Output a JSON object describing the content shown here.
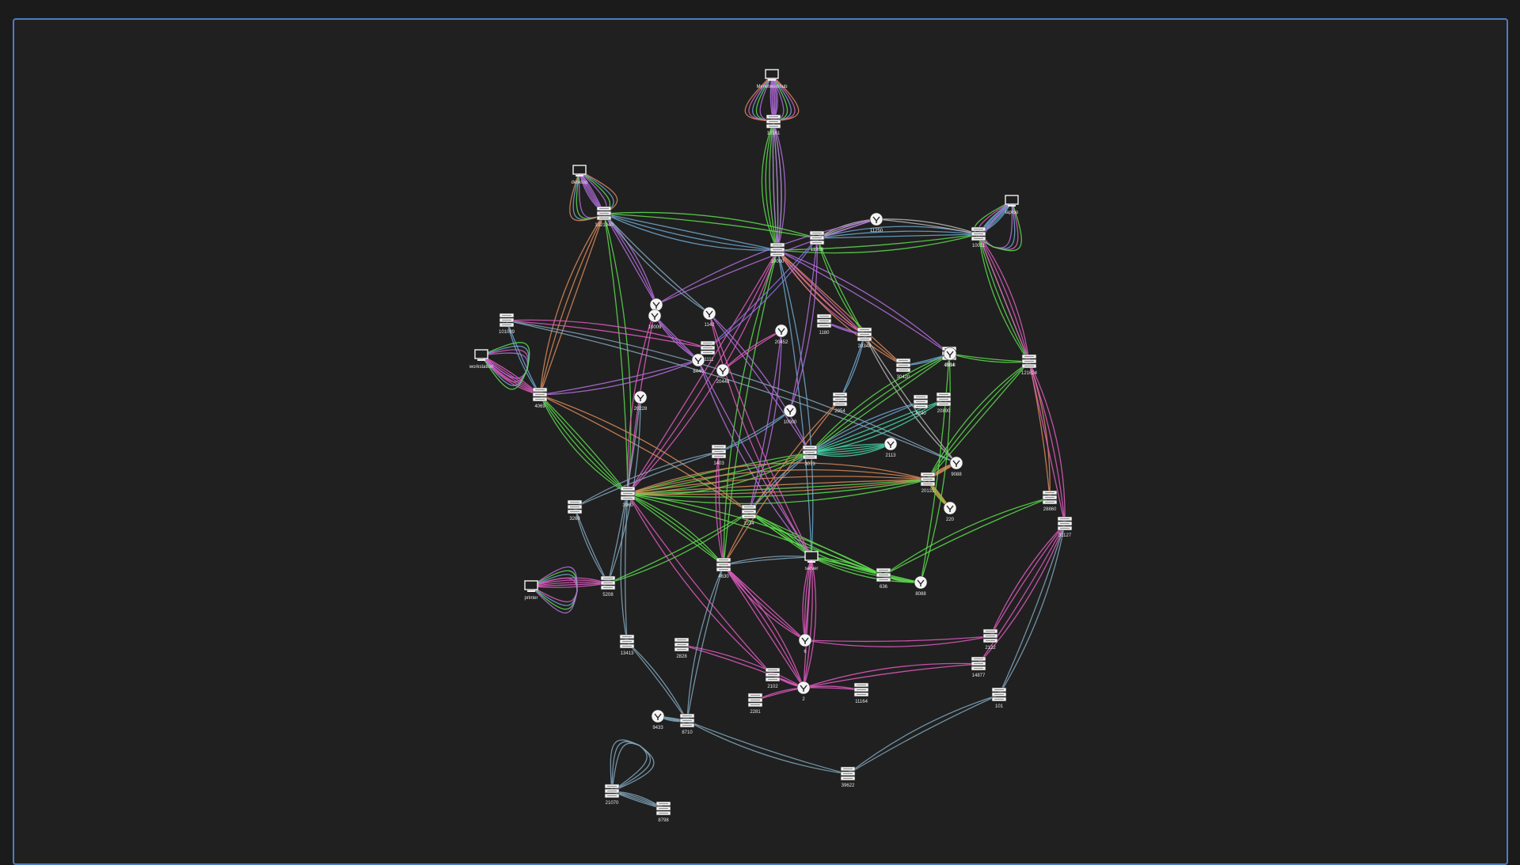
{
  "canvas": {
    "background": "#202020",
    "border_color": "#4d7cc4"
  },
  "palette": {
    "purple": "#b66ee0",
    "green": "#5ddd4d",
    "blue": "#6fa8d0",
    "steel": "#83a7bd",
    "orange": "#d98a5a",
    "pink": "#e25cc1",
    "mint": "#45d6a8",
    "gray": "#b8b8b8",
    "yellow": "#c9b74a",
    "violet": "#8a73e0"
  },
  "nodes": [
    {
      "id": "n1",
      "kind": "monitor",
      "label": "Mynetworkhub"
    },
    {
      "id": "n2",
      "kind": "router",
      "label": "10161"
    },
    {
      "id": "n3",
      "kind": "monitor",
      "label": "desktop"
    },
    {
      "id": "n4",
      "kind": "router",
      "label": "1021040"
    },
    {
      "id": "n5",
      "kind": "monitor",
      "label": "laptop"
    },
    {
      "id": "n6",
      "kind": "router",
      "label": "10011"
    },
    {
      "id": "n7",
      "kind": "router",
      "label": "10000"
    },
    {
      "id": "n8",
      "kind": "router",
      "label": "11926"
    },
    {
      "id": "n9",
      "kind": "cloud",
      "label": "11250"
    },
    {
      "id": "n10",
      "kind": "router",
      "label": "101089"
    },
    {
      "id": "n11",
      "kind": "monitor",
      "label": "workstation"
    },
    {
      "id": "n12",
      "kind": "router",
      "label": "4069"
    },
    {
      "id": "n13",
      "kind": "cloud",
      "label": "1111"
    },
    {
      "id": "n14",
      "kind": "cloud",
      "label": "1142"
    },
    {
      "id": "n15",
      "kind": "cloud",
      "label": "10009"
    },
    {
      "id": "n16",
      "kind": "router",
      "label": "11111"
    },
    {
      "id": "n17",
      "kind": "cloud",
      "label": "20448"
    },
    {
      "id": "n18",
      "kind": "cloud",
      "label": "8440"
    },
    {
      "id": "n19",
      "kind": "cloud",
      "label": "20228"
    },
    {
      "id": "n20",
      "kind": "router",
      "label": "1180"
    },
    {
      "id": "n21",
      "kind": "cloud",
      "label": "20452"
    },
    {
      "id": "n22",
      "kind": "router",
      "label": "20348"
    },
    {
      "id": "n23",
      "kind": "router",
      "label": "30420"
    },
    {
      "id": "n24",
      "kind": "router",
      "label": "4584"
    },
    {
      "id": "n25",
      "kind": "cloud",
      "label": "2018"
    },
    {
      "id": "n26",
      "kind": "router",
      "label": "121624"
    },
    {
      "id": "n27",
      "kind": "router",
      "label": "2954"
    },
    {
      "id": "n28",
      "kind": "router",
      "label": "8240"
    },
    {
      "id": "n29",
      "kind": "router",
      "label": "20890"
    },
    {
      "id": "n30",
      "kind": "cloud",
      "label": "10000"
    },
    {
      "id": "n31",
      "kind": "router",
      "label": "1403"
    },
    {
      "id": "n32",
      "kind": "router",
      "label": "20131"
    },
    {
      "id": "n33",
      "kind": "router",
      "label": "3073"
    },
    {
      "id": "n34",
      "kind": "cloud",
      "label": "2113"
    },
    {
      "id": "n35",
      "kind": "cloud",
      "label": "9088"
    },
    {
      "id": "n36",
      "kind": "router",
      "label": "3960"
    },
    {
      "id": "n37",
      "kind": "router",
      "label": "3268"
    },
    {
      "id": "n38",
      "kind": "router",
      "label": "1234"
    },
    {
      "id": "n39",
      "kind": "cloud",
      "label": "220"
    },
    {
      "id": "n40",
      "kind": "router",
      "label": "28860"
    },
    {
      "id": "n41",
      "kind": "router",
      "label": "31127"
    },
    {
      "id": "n42",
      "kind": "monitor",
      "label": "printer"
    },
    {
      "id": "n43",
      "kind": "router",
      "label": "5208"
    },
    {
      "id": "n44",
      "kind": "router",
      "label": "4630"
    },
    {
      "id": "n45",
      "kind": "monitor",
      "label": "server"
    },
    {
      "id": "n46",
      "kind": "router",
      "label": "636"
    },
    {
      "id": "n47",
      "kind": "cloud",
      "label": "8088"
    },
    {
      "id": "n48",
      "kind": "router",
      "label": "13413"
    },
    {
      "id": "n49",
      "kind": "router",
      "label": "2828"
    },
    {
      "id": "n50",
      "kind": "cloud",
      "label": "6"
    },
    {
      "id": "n51",
      "kind": "router",
      "label": "2122"
    },
    {
      "id": "n52",
      "kind": "router",
      "label": "14877"
    },
    {
      "id": "n53",
      "kind": "router",
      "label": "2102"
    },
    {
      "id": "n54",
      "kind": "router",
      "label": "2281"
    },
    {
      "id": "n55",
      "kind": "cloud",
      "label": "2"
    },
    {
      "id": "n56",
      "kind": "router",
      "label": "11164"
    },
    {
      "id": "n57",
      "kind": "router",
      "label": "101"
    },
    {
      "id": "n58",
      "kind": "cloud",
      "label": "9433"
    },
    {
      "id": "n59",
      "kind": "router",
      "label": "8710"
    },
    {
      "id": "n60",
      "kind": "router",
      "label": "39622"
    },
    {
      "id": "n61",
      "kind": "router",
      "label": "21070"
    },
    {
      "id": "n62",
      "kind": "router",
      "label": "8798"
    }
  ],
  "edges": [
    {
      "s": "n1",
      "t": "n2",
      "c": "purple",
      "k": 6
    },
    {
      "s": "n3",
      "t": "n4",
      "c": "purple",
      "k": 5
    },
    {
      "s": "n5",
      "t": "n6",
      "c": "blue",
      "k": 5
    },
    {
      "s": "n11",
      "t": "n12",
      "c": "pink",
      "k": 5
    },
    {
      "s": "n42",
      "t": "n43",
      "c": "pink",
      "k": 5
    },
    {
      "s": "n58",
      "t": "n59",
      "c": "steel",
      "k": 4
    },
    {
      "s": "n61",
      "t": "n62",
      "c": "steel",
      "k": 4
    },
    {
      "s": "n2",
      "t": "n7",
      "c": "green",
      "k": 6
    },
    {
      "s": "n2",
      "t": "n7",
      "c": "purple",
      "k": 4
    },
    {
      "s": "n4",
      "t": "n7",
      "c": "blue",
      "k": 3
    },
    {
      "s": "n4",
      "t": "n8",
      "c": "green",
      "k": 2
    },
    {
      "s": "n4",
      "t": "n12",
      "c": "orange",
      "k": 3
    },
    {
      "s": "n4",
      "t": "n13",
      "c": "purple",
      "k": 3
    },
    {
      "s": "n4",
      "t": "n14",
      "c": "steel",
      "k": 2
    },
    {
      "s": "n4",
      "t": "n36",
      "c": "green",
      "k": 2
    },
    {
      "s": "n6",
      "t": "n26",
      "c": "green",
      "k": 3
    },
    {
      "s": "n6",
      "t": "n26",
      "c": "pink",
      "k": 3
    },
    {
      "s": "n6",
      "t": "n8",
      "c": "blue",
      "k": 3
    },
    {
      "s": "n6",
      "t": "n7",
      "c": "green",
      "k": 2
    },
    {
      "s": "n9",
      "t": "n8",
      "c": "gray",
      "k": 3
    },
    {
      "s": "n9",
      "t": "n6",
      "c": "gray",
      "k": 2
    },
    {
      "s": "n7",
      "t": "n22",
      "c": "pink",
      "k": 3
    },
    {
      "s": "n7",
      "t": "n24",
      "c": "purple",
      "k": 2
    },
    {
      "s": "n7",
      "t": "n23",
      "c": "orange",
      "k": 3
    },
    {
      "s": "n7",
      "t": "n36",
      "c": "pink",
      "k": 3
    },
    {
      "s": "n7",
      "t": "n44",
      "c": "green",
      "k": 2
    },
    {
      "s": "n7",
      "t": "n45",
      "c": "blue",
      "k": 2
    },
    {
      "s": "n8",
      "t": "n22",
      "c": "green",
      "k": 2
    },
    {
      "s": "n8",
      "t": "n30",
      "c": "purple",
      "k": 2
    },
    {
      "s": "n12",
      "t": "n36",
      "c": "green",
      "k": 4
    },
    {
      "s": "n12",
      "t": "n38",
      "c": "orange",
      "k": 2
    },
    {
      "s": "n12",
      "t": "n18",
      "c": "purple",
      "k": 2
    },
    {
      "s": "n10",
      "t": "n16",
      "c": "pink",
      "k": 2
    },
    {
      "s": "n10",
      "t": "n12",
      "c": "blue",
      "k": 2
    },
    {
      "s": "n10",
      "t": "n35",
      "c": "steel",
      "k": 2
    },
    {
      "s": "n13",
      "t": "n36",
      "c": "pink",
      "k": 2
    },
    {
      "s": "n14",
      "t": "n33",
      "c": "purple",
      "k": 2
    },
    {
      "s": "n15",
      "t": "n18",
      "c": "purple",
      "k": 3
    },
    {
      "s": "n17",
      "t": "n21",
      "c": "pink",
      "k": 2
    },
    {
      "s": "n18",
      "t": "n45",
      "c": "purple",
      "k": 2
    },
    {
      "s": "n19",
      "t": "n43",
      "c": "steel",
      "k": 2
    },
    {
      "s": "n20",
      "t": "n22",
      "c": "purple",
      "k": 2
    },
    {
      "s": "n22",
      "t": "n27",
      "c": "blue",
      "k": 2
    },
    {
      "s": "n22",
      "t": "n35",
      "c": "gray",
      "k": 2
    },
    {
      "s": "n26",
      "t": "n40",
      "c": "orange",
      "k": 2
    },
    {
      "s": "n26",
      "t": "n32",
      "c": "green",
      "k": 3
    },
    {
      "s": "n26",
      "t": "n41",
      "c": "pink",
      "k": 3
    },
    {
      "s": "n25",
      "t": "n33",
      "c": "green",
      "k": 3
    },
    {
      "s": "n29",
      "t": "n33",
      "c": "mint",
      "k": 3
    },
    {
      "s": "n33",
      "t": "n34",
      "c": "mint",
      "k": 5
    },
    {
      "s": "n33",
      "t": "n36",
      "c": "green",
      "k": 4
    },
    {
      "s": "n33",
      "t": "n38",
      "c": "blue",
      "k": 2
    },
    {
      "s": "n36",
      "t": "n32",
      "c": "orange",
      "k": 5
    },
    {
      "s": "n36",
      "t": "n32",
      "c": "green",
      "k": 3
    },
    {
      "s": "n32",
      "t": "n35",
      "c": "orange",
      "k": 4
    },
    {
      "s": "n32",
      "t": "n39",
      "c": "yellow",
      "k": 4
    },
    {
      "s": "n38",
      "t": "n45",
      "c": "green",
      "k": 3
    },
    {
      "s": "n38",
      "t": "n46",
      "c": "green",
      "k": 3
    },
    {
      "s": "n36",
      "t": "n46",
      "c": "green",
      "k": 2
    },
    {
      "s": "n45",
      "t": "n47",
      "c": "green",
      "k": 3
    },
    {
      "s": "n45",
      "t": "n46",
      "c": "green",
      "k": 2
    },
    {
      "s": "n46",
      "t": "n47",
      "c": "green",
      "k": 3
    },
    {
      "s": "n43",
      "t": "n37",
      "c": "steel",
      "k": 2
    },
    {
      "s": "n43",
      "t": "n38",
      "c": "green",
      "k": 2
    },
    {
      "s": "n37",
      "t": "n31",
      "c": "steel",
      "k": 2
    },
    {
      "s": "n44",
      "t": "n50",
      "c": "pink",
      "k": 3
    },
    {
      "s": "n44",
      "t": "n55",
      "c": "pink",
      "k": 3
    },
    {
      "s": "n45",
      "t": "n50",
      "c": "pink",
      "k": 3
    },
    {
      "s": "n45",
      "t": "n55",
      "c": "pink",
      "k": 3
    },
    {
      "s": "n56",
      "t": "n55",
      "c": "pink",
      "k": 2
    },
    {
      "s": "n51",
      "t": "n50",
      "c": "pink",
      "k": 2
    },
    {
      "s": "n52",
      "t": "n55",
      "c": "pink",
      "k": 2
    },
    {
      "s": "n41",
      "t": "n52",
      "c": "pink",
      "k": 2
    },
    {
      "s": "n41",
      "t": "n51",
      "c": "pink",
      "k": 2
    },
    {
      "s": "n41",
      "t": "n57",
      "c": "steel",
      "k": 2
    },
    {
      "s": "n57",
      "t": "n60",
      "c": "steel",
      "k": 2
    },
    {
      "s": "n60",
      "t": "n59",
      "c": "steel",
      "k": 2
    },
    {
      "s": "n36",
      "t": "n48",
      "c": "steel",
      "k": 2
    },
    {
      "s": "n48",
      "t": "n59",
      "c": "steel",
      "k": 2
    },
    {
      "s": "n36",
      "t": "n53",
      "c": "pink",
      "k": 2
    },
    {
      "s": "n49",
      "t": "n55",
      "c": "pink",
      "k": 2
    },
    {
      "s": "n53",
      "t": "n55",
      "c": "pink",
      "k": 2
    },
    {
      "s": "n54",
      "t": "n55",
      "c": "pink",
      "k": 2
    },
    {
      "s": "n44",
      "t": "n59",
      "c": "steel",
      "k": 2
    },
    {
      "s": "n44",
      "t": "n45",
      "c": "steel",
      "k": 2
    },
    {
      "s": "n40",
      "t": "n46",
      "c": "green",
      "k": 2
    },
    {
      "s": "n13",
      "t": "n9",
      "c": "purple",
      "k": 2
    },
    {
      "s": "n16",
      "t": "n8",
      "c": "violet",
      "k": 2
    },
    {
      "s": "n30",
      "t": "n31",
      "c": "blue",
      "k": 2
    },
    {
      "s": "n31",
      "t": "n44",
      "c": "pink",
      "k": 2
    },
    {
      "s": "n24",
      "t": "n47",
      "c": "green",
      "k": 2
    },
    {
      "s": "n28",
      "t": "n33",
      "c": "blue",
      "k": 2
    },
    {
      "s": "n21",
      "t": "n38",
      "c": "purple",
      "k": 2
    },
    {
      "s": "n27",
      "t": "n44",
      "c": "orange",
      "k": 2
    },
    {
      "s": "n36",
      "t": "n44",
      "c": "green",
      "k": 3
    },
    {
      "s": "n14",
      "t": "n45",
      "c": "pink",
      "k": 2
    },
    {
      "s": "n26",
      "t": "n25",
      "c": "green",
      "k": 2
    },
    {
      "s": "n23",
      "t": "n25",
      "c": "blue",
      "k": 2
    }
  ]
}
